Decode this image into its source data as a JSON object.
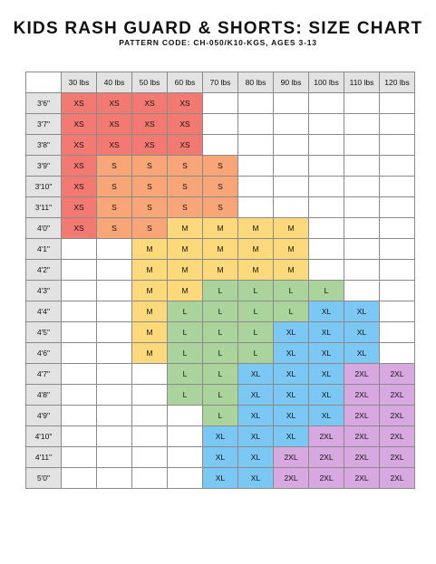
{
  "header": {
    "title": "KIDS RASH GUARD & SHORTS: SIZE CHART",
    "subtitle": "PATTERN CODE: CH-050/K10-KGS, AGES 3-13"
  },
  "size_colors": {
    "XS": "#f27a72",
    "S": "#f8a678",
    "M": "#fcd97a",
    "L": "#aad49c",
    "XL": "#7cc8f5",
    "2XL": "#d8a8e0"
  },
  "table": {
    "weights": [
      "30 lbs",
      "40 lbs",
      "50 lbs",
      "60 lbs",
      "70 lbs",
      "80 lbs",
      "90 lbs",
      "100 lbs",
      "110 lbs",
      "120 lbs"
    ],
    "rows": [
      {
        "height": "3'6\"",
        "cells": [
          "XS",
          "XS",
          "XS",
          "XS",
          "",
          "",
          "",
          "",
          "",
          ""
        ]
      },
      {
        "height": "3'7\"",
        "cells": [
          "XS",
          "XS",
          "XS",
          "XS",
          "",
          "",
          "",
          "",
          "",
          ""
        ]
      },
      {
        "height": "3'8\"",
        "cells": [
          "XS",
          "XS",
          "XS",
          "XS",
          "",
          "",
          "",
          "",
          "",
          ""
        ]
      },
      {
        "height": "3'9\"",
        "cells": [
          "XS",
          "S",
          "S",
          "S",
          "S",
          "",
          "",
          "",
          "",
          ""
        ]
      },
      {
        "height": "3'10\"",
        "cells": [
          "XS",
          "S",
          "S",
          "S",
          "S",
          "",
          "",
          "",
          "",
          ""
        ]
      },
      {
        "height": "3'11\"",
        "cells": [
          "XS",
          "S",
          "S",
          "S",
          "S",
          "",
          "",
          "",
          "",
          ""
        ]
      },
      {
        "height": "4'0\"",
        "cells": [
          "XS",
          "S",
          "S",
          "M",
          "M",
          "M",
          "M",
          "",
          "",
          ""
        ]
      },
      {
        "height": "4'1\"",
        "cells": [
          "",
          "",
          "M",
          "M",
          "M",
          "M",
          "M",
          "",
          "",
          ""
        ]
      },
      {
        "height": "4'2\"",
        "cells": [
          "",
          "",
          "M",
          "M",
          "M",
          "M",
          "M",
          "",
          "",
          ""
        ]
      },
      {
        "height": "4'3\"",
        "cells": [
          "",
          "",
          "M",
          "M",
          "L",
          "L",
          "L",
          "L",
          "",
          ""
        ]
      },
      {
        "height": "4'4\"",
        "cells": [
          "",
          "",
          "M",
          "L",
          "L",
          "L",
          "L",
          "XL",
          "XL",
          ""
        ]
      },
      {
        "height": "4'5\"",
        "cells": [
          "",
          "",
          "M",
          "L",
          "L",
          "L",
          "XL",
          "XL",
          "XL",
          ""
        ]
      },
      {
        "height": "4'6\"",
        "cells": [
          "",
          "",
          "M",
          "L",
          "L",
          "L",
          "XL",
          "XL",
          "XL",
          ""
        ]
      },
      {
        "height": "4'7\"",
        "cells": [
          "",
          "",
          "",
          "L",
          "L",
          "XL",
          "XL",
          "XL",
          "2XL",
          "2XL"
        ]
      },
      {
        "height": "4'8\"",
        "cells": [
          "",
          "",
          "",
          "L",
          "L",
          "XL",
          "XL",
          "XL",
          "2XL",
          "2XL"
        ]
      },
      {
        "height": "4'9\"",
        "cells": [
          "",
          "",
          "",
          "",
          "L",
          "XL",
          "XL",
          "XL",
          "2XL",
          "2XL"
        ]
      },
      {
        "height": "4'10\"",
        "cells": [
          "",
          "",
          "",
          "",
          "XL",
          "XL",
          "XL",
          "2XL",
          "2XL",
          "2XL"
        ]
      },
      {
        "height": "4'11\"",
        "cells": [
          "",
          "",
          "",
          "",
          "XL",
          "XL",
          "2XL",
          "2XL",
          "2XL",
          "2XL"
        ]
      },
      {
        "height": "5'0\"",
        "cells": [
          "",
          "",
          "",
          "",
          "XL",
          "XL",
          "2XL",
          "2XL",
          "2XL",
          "2XL"
        ]
      }
    ]
  }
}
